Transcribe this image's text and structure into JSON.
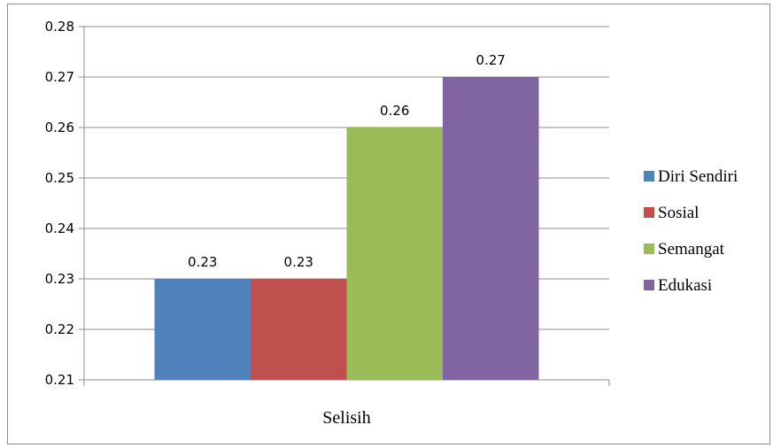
{
  "chart_data": {
    "type": "bar",
    "categories": [
      "Selisih"
    ],
    "series": [
      {
        "name": "Diri Sendiri",
        "values": [
          0.23
        ],
        "color": "#4f81bd"
      },
      {
        "name": "Sosial",
        "values": [
          0.23
        ],
        "color": "#c0504d"
      },
      {
        "name": "Semangat",
        "values": [
          0.26
        ],
        "color": "#9bbb59"
      },
      {
        "name": "Edukasi",
        "values": [
          0.27
        ],
        "color": "#8064a2"
      }
    ],
    "data_labels": [
      "0.23",
      "0.23",
      "0.26",
      "0.27"
    ],
    "y_ticks": [
      "0.21",
      "0.22",
      "0.23",
      "0.24",
      "0.25",
      "0.26",
      "0.27",
      "0.28"
    ],
    "ylim": [
      0.21,
      0.28
    ],
    "grid": true,
    "legend_position": "right",
    "gridline_color": "#8c8c8c",
    "axis_color": "#8c8c8c"
  }
}
